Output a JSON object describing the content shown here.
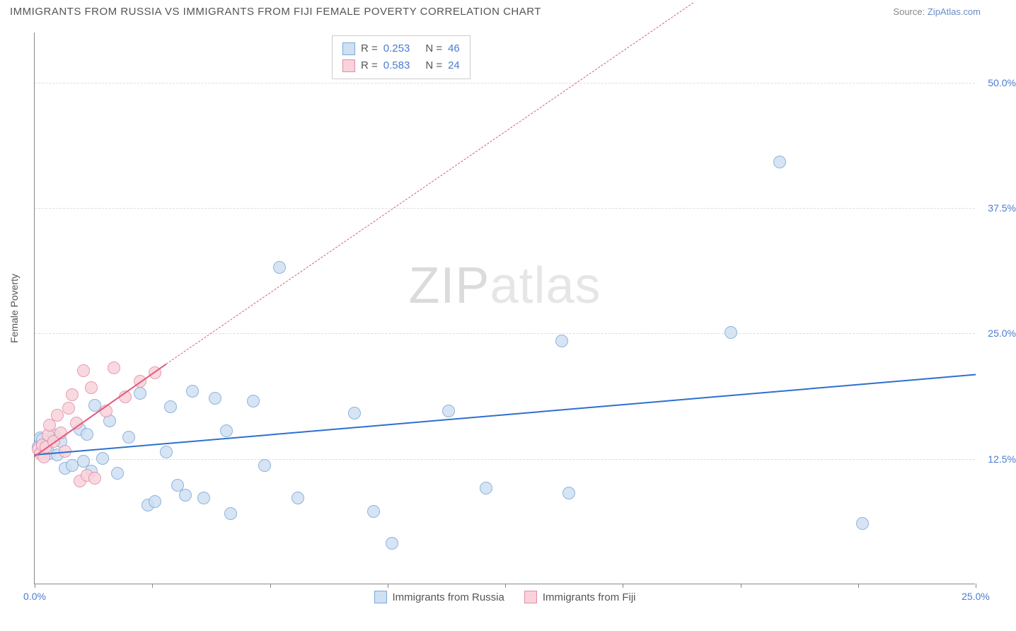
{
  "header": {
    "title": "IMMIGRANTS FROM RUSSIA VS IMMIGRANTS FROM FIJI FEMALE POVERTY CORRELATION CHART",
    "source_label": "Source:",
    "source_link": "ZipAtlas.com"
  },
  "watermark": {
    "part1": "ZIP",
    "part2": "atlas"
  },
  "chart": {
    "type": "scatter",
    "y_axis_label": "Female Poverty",
    "xlim": [
      0,
      25
    ],
    "ylim": [
      0,
      55
    ],
    "x_ticks": [
      0,
      3.125,
      6.25,
      9.375,
      12.5,
      15.625,
      18.75,
      21.875,
      25
    ],
    "x_tick_labels": {
      "0": "0.0%",
      "25": "25.0%"
    },
    "y_gridlines": [
      12.5,
      25.0,
      37.5,
      50.0
    ],
    "y_tick_labels": [
      "12.5%",
      "25.0%",
      "37.5%",
      "50.0%"
    ],
    "background_color": "#ffffff",
    "grid_color": "#dddddd",
    "axis_color": "#888888",
    "series": [
      {
        "name": "Immigrants from Russia",
        "fill": "#cfe0f3",
        "stroke": "#7aa8d8",
        "line_color": "#2e6fd0",
        "r_value": "0.253",
        "n_value": "46",
        "marker_radius": 9,
        "points": [
          [
            0.1,
            13.6
          ],
          [
            0.15,
            14.5
          ],
          [
            0.2,
            13.2
          ],
          [
            0.2,
            14.4
          ],
          [
            0.3,
            13.8
          ],
          [
            0.4,
            13.0
          ],
          [
            0.5,
            14.8
          ],
          [
            0.6,
            12.8
          ],
          [
            0.7,
            14.2
          ],
          [
            0.8,
            11.5
          ],
          [
            1.0,
            11.8
          ],
          [
            1.2,
            15.4
          ],
          [
            1.3,
            12.2
          ],
          [
            1.4,
            14.9
          ],
          [
            1.5,
            11.2
          ],
          [
            1.6,
            17.8
          ],
          [
            1.8,
            12.5
          ],
          [
            2.0,
            16.2
          ],
          [
            2.2,
            11.0
          ],
          [
            2.5,
            14.6
          ],
          [
            2.8,
            19.0
          ],
          [
            3.0,
            7.8
          ],
          [
            3.2,
            8.2
          ],
          [
            3.5,
            13.1
          ],
          [
            3.6,
            17.6
          ],
          [
            3.8,
            9.8
          ],
          [
            4.0,
            8.8
          ],
          [
            4.2,
            19.2
          ],
          [
            4.5,
            8.5
          ],
          [
            4.8,
            18.5
          ],
          [
            5.1,
            15.2
          ],
          [
            5.2,
            7.0
          ],
          [
            5.8,
            18.2
          ],
          [
            6.1,
            11.8
          ],
          [
            6.5,
            31.5
          ],
          [
            7.0,
            8.5
          ],
          [
            8.5,
            17.0
          ],
          [
            9.0,
            7.2
          ],
          [
            9.5,
            4.0
          ],
          [
            11.0,
            17.2
          ],
          [
            12.0,
            9.5
          ],
          [
            14.0,
            24.2
          ],
          [
            14.2,
            9.0
          ],
          [
            18.5,
            25.0
          ],
          [
            19.8,
            42.0
          ],
          [
            22.0,
            6.0
          ]
        ],
        "trend": {
          "x1": 0,
          "y1": 13.0,
          "x2": 25,
          "y2": 21.0,
          "dash": false
        }
      },
      {
        "name": "Immigrants from Fiji",
        "fill": "#f9d3db",
        "stroke": "#e48ba3",
        "line_color": "#e15a7d",
        "r_value": "0.583",
        "n_value": "24",
        "marker_radius": 9,
        "points": [
          [
            0.1,
            13.4
          ],
          [
            0.15,
            13.0
          ],
          [
            0.2,
            13.8
          ],
          [
            0.25,
            12.6
          ],
          [
            0.3,
            13.6
          ],
          [
            0.35,
            14.8
          ],
          [
            0.4,
            15.8
          ],
          [
            0.5,
            14.2
          ],
          [
            0.6,
            16.8
          ],
          [
            0.7,
            15.0
          ],
          [
            0.8,
            13.2
          ],
          [
            0.9,
            17.5
          ],
          [
            1.0,
            18.8
          ],
          [
            1.1,
            16.0
          ],
          [
            1.2,
            10.2
          ],
          [
            1.3,
            21.2
          ],
          [
            1.4,
            10.8
          ],
          [
            1.5,
            19.5
          ],
          [
            1.6,
            10.5
          ],
          [
            1.9,
            17.2
          ],
          [
            2.1,
            21.5
          ],
          [
            2.4,
            18.6
          ],
          [
            2.8,
            20.2
          ],
          [
            3.2,
            21.0
          ]
        ],
        "trend": {
          "x1": 0,
          "y1": 12.8,
          "x2": 3.5,
          "y2": 22.0,
          "dash": false
        },
        "trend_ext": {
          "x1": 3.5,
          "y1": 22.0,
          "x2": 17.5,
          "y2": 58.0,
          "dash": true
        }
      }
    ],
    "stats_legend": {
      "r_label": "R =",
      "n_label": "N ="
    },
    "bottom_legend": [
      {
        "label": "Immigrants from Russia",
        "fill": "#cfe0f3",
        "stroke": "#7aa8d8"
      },
      {
        "label": "Immigrants from Fiji",
        "fill": "#f9d3db",
        "stroke": "#e48ba3"
      }
    ]
  }
}
